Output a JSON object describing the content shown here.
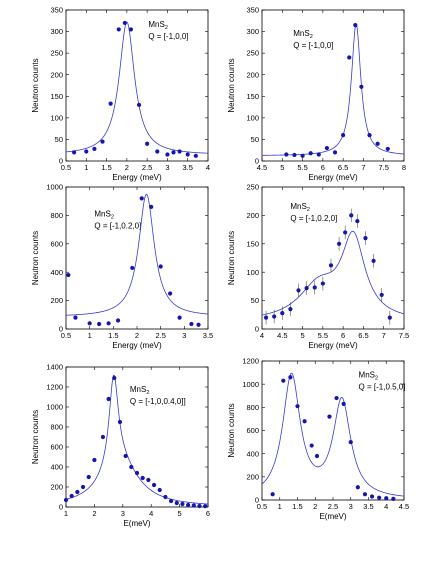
{
  "chart_data": [
    {
      "type": "scatter",
      "annotation": {
        "compound": "MnS",
        "subscript": "2",
        "q": "Q = [-1,0,0]"
      },
      "xlabel": "Energy (meV)",
      "ylabel": "Neutron counts",
      "xlim": [
        0.5,
        4
      ],
      "ylim": [
        0,
        350
      ],
      "xticks": [
        "0.5",
        "1",
        "1.5",
        "2",
        "2.5",
        "3",
        "3.5",
        "4"
      ],
      "yticks": [
        "0",
        "50",
        "100",
        "150",
        "200",
        "250",
        "300",
        "350"
      ],
      "points": [
        [
          0.7,
          20
        ],
        [
          1.0,
          22
        ],
        [
          1.2,
          28
        ],
        [
          1.4,
          45
        ],
        [
          1.6,
          133
        ],
        [
          1.8,
          305
        ],
        [
          1.95,
          320
        ],
        [
          2.1,
          305
        ],
        [
          2.3,
          130
        ],
        [
          2.5,
          40
        ],
        [
          2.75,
          22
        ],
        [
          3.0,
          15
        ],
        [
          3.15,
          20
        ],
        [
          3.3,
          22
        ],
        [
          3.5,
          15
        ],
        [
          3.7,
          12
        ]
      ],
      "fit": {
        "background": 14,
        "peaks": [
          {
            "center": 2.0,
            "height": 308,
            "width": 0.23
          }
        ]
      }
    },
    {
      "type": "scatter",
      "annotation": {
        "compound": "MnS",
        "subscript": "2",
        "q": "Q = [-1,0,0]"
      },
      "xlabel": "Energy (meV)",
      "ylabel": "Neutron counts",
      "xlim": [
        4.5,
        8
      ],
      "ylim": [
        0,
        350
      ],
      "xticks": [
        "4.5",
        "5",
        "5.5",
        "6",
        "6.5",
        "7",
        "7.5",
        "8"
      ],
      "yticks": [
        "0",
        "50",
        "100",
        "150",
        "200",
        "250",
        "300",
        "350"
      ],
      "points": [
        [
          5.1,
          15
        ],
        [
          5.3,
          14
        ],
        [
          5.5,
          12
        ],
        [
          5.7,
          18
        ],
        [
          5.9,
          15
        ],
        [
          6.1,
          30
        ],
        [
          6.3,
          20
        ],
        [
          6.5,
          60
        ],
        [
          6.65,
          240
        ],
        [
          6.8,
          315
        ],
        [
          6.95,
          172
        ],
        [
          7.15,
          60
        ],
        [
          7.35,
          40
        ],
        [
          7.6,
          28
        ]
      ],
      "fit": {
        "background": 12,
        "peaks": [
          {
            "center": 6.82,
            "height": 306,
            "width": 0.14
          }
        ]
      }
    },
    {
      "type": "scatter",
      "annotation": {
        "compound": "MnS",
        "subscript": "2",
        "q": "Q = [-1,0.2,0]"
      },
      "xlabel": "Energy (meV)",
      "ylabel": "Neutron counts",
      "xlim": [
        0.5,
        3.5
      ],
      "ylim": [
        0,
        1000
      ],
      "xticks": [
        "0.5",
        "1",
        "1.5",
        "2",
        "2.5",
        "3",
        "3.5"
      ],
      "yticks": [
        "0",
        "200",
        "400",
        "600",
        "800",
        "1000"
      ],
      "points": [
        [
          0.55,
          380
        ],
        [
          0.7,
          80
        ],
        [
          1.0,
          40
        ],
        [
          1.2,
          35
        ],
        [
          1.4,
          40
        ],
        [
          1.6,
          60
        ],
        [
          1.9,
          430
        ],
        [
          2.1,
          920
        ],
        [
          2.3,
          860
        ],
        [
          2.5,
          440
        ],
        [
          2.7,
          250
        ],
        [
          2.9,
          80
        ],
        [
          3.15,
          35
        ],
        [
          3.3,
          30
        ]
      ],
      "fit": {
        "background": 85,
        "peaks": [
          {
            "center": 2.2,
            "height": 865,
            "width": 0.2
          }
        ]
      }
    },
    {
      "type": "scatter",
      "annotation": {
        "compound": "MnS",
        "subscript": "2",
        "q": "Q = [-1,0.2,0]"
      },
      "xlabel": "Energy (meV)",
      "ylabel": "Neutron counts",
      "xlim": [
        4,
        7.5
      ],
      "ylim": [
        0,
        250
      ],
      "xticks": [
        "4",
        "4.5",
        "5",
        "5.5",
        "6",
        "6.5",
        "7",
        "7.5"
      ],
      "yticks": [
        "0",
        "50",
        "100",
        "150",
        "200",
        "250"
      ],
      "points": [
        [
          4.1,
          20
        ],
        [
          4.3,
          22
        ],
        [
          4.5,
          28
        ],
        [
          4.7,
          35
        ],
        [
          4.9,
          68
        ],
        [
          5.1,
          72
        ],
        [
          5.3,
          73
        ],
        [
          5.5,
          80
        ],
        [
          5.7,
          112
        ],
        [
          5.9,
          150
        ],
        [
          6.05,
          170
        ],
        [
          6.2,
          200
        ],
        [
          6.35,
          190
        ],
        [
          6.55,
          160
        ],
        [
          6.75,
          120
        ],
        [
          6.95,
          60
        ],
        [
          7.15,
          20
        ]
      ],
      "fit": {
        "background": 12,
        "peaks": [
          {
            "center": 6.25,
            "height": 140,
            "width": 0.35
          },
          {
            "center": 5.4,
            "height": 60,
            "width": 0.6
          }
        ]
      },
      "error_bars": 12
    },
    {
      "type": "scatter",
      "annotation": {
        "compound": "MnS",
        "subscript": "2",
        "q": "Q = [-1,0,0.4,0]]"
      },
      "xlabel": "E(meV)",
      "ylabel": "Neutron counts",
      "xlim": [
        1,
        6
      ],
      "ylim": [
        0,
        1400
      ],
      "xticks": [
        "1",
        "2",
        "3",
        "4",
        "5",
        "6"
      ],
      "yticks": [
        "0",
        "200",
        "400",
        "600",
        "800",
        "1000",
        "1200",
        "1400"
      ],
      "points": [
        [
          1.0,
          70
        ],
        [
          1.2,
          110
        ],
        [
          1.4,
          150
        ],
        [
          1.6,
          200
        ],
        [
          1.8,
          300
        ],
        [
          2.0,
          470
        ],
        [
          2.3,
          700
        ],
        [
          2.5,
          1080
        ],
        [
          2.7,
          1290
        ],
        [
          2.9,
          850
        ],
        [
          3.1,
          510
        ],
        [
          3.3,
          400
        ],
        [
          3.5,
          340
        ],
        [
          3.7,
          290
        ],
        [
          3.9,
          270
        ],
        [
          4.1,
          220
        ],
        [
          4.3,
          170
        ],
        [
          4.5,
          100
        ],
        [
          4.7,
          60
        ],
        [
          4.9,
          40
        ],
        [
          5.1,
          30
        ],
        [
          5.3,
          20
        ],
        [
          5.5,
          15
        ],
        [
          5.7,
          10
        ],
        [
          5.9,
          8
        ]
      ],
      "fit": {
        "background": 0,
        "peaks": [
          {
            "center": 2.68,
            "height": 930,
            "width": 0.2
          },
          {
            "center": 2.9,
            "height": 420,
            "width": 0.8
          }
        ]
      }
    },
    {
      "type": "scatter",
      "annotation": {
        "compound": "MnS",
        "subscript": "2",
        "q": "Q = [-1,0.5,0]"
      },
      "xlabel": "E(meV)",
      "ylabel": "Neutron counts",
      "xlim": [
        0.5,
        4.5
      ],
      "ylim": [
        0,
        1200
      ],
      "xticks": [
        "0.5",
        "1",
        "1.5",
        "2",
        "2.5",
        "3",
        "3.5",
        "4",
        "4.5"
      ],
      "yticks": [
        "0",
        "200",
        "400",
        "600",
        "800",
        "1000",
        "1200"
      ],
      "points": [
        [
          0.8,
          50
        ],
        [
          1.1,
          1030
        ],
        [
          1.3,
          1060
        ],
        [
          1.5,
          810
        ],
        [
          1.7,
          680
        ],
        [
          1.9,
          470
        ],
        [
          2.05,
          380
        ],
        [
          2.4,
          720
        ],
        [
          2.6,
          880
        ],
        [
          2.8,
          830
        ],
        [
          3.0,
          500
        ],
        [
          3.2,
          110
        ],
        [
          3.4,
          50
        ],
        [
          3.6,
          30
        ],
        [
          3.8,
          20
        ],
        [
          4.0,
          15
        ],
        [
          4.2,
          10
        ]
      ],
      "fit": {
        "background": 0,
        "peaks": [
          {
            "center": 1.33,
            "height": 1060,
            "width": 0.3
          },
          {
            "center": 2.75,
            "height": 840,
            "width": 0.3
          }
        ]
      }
    }
  ]
}
